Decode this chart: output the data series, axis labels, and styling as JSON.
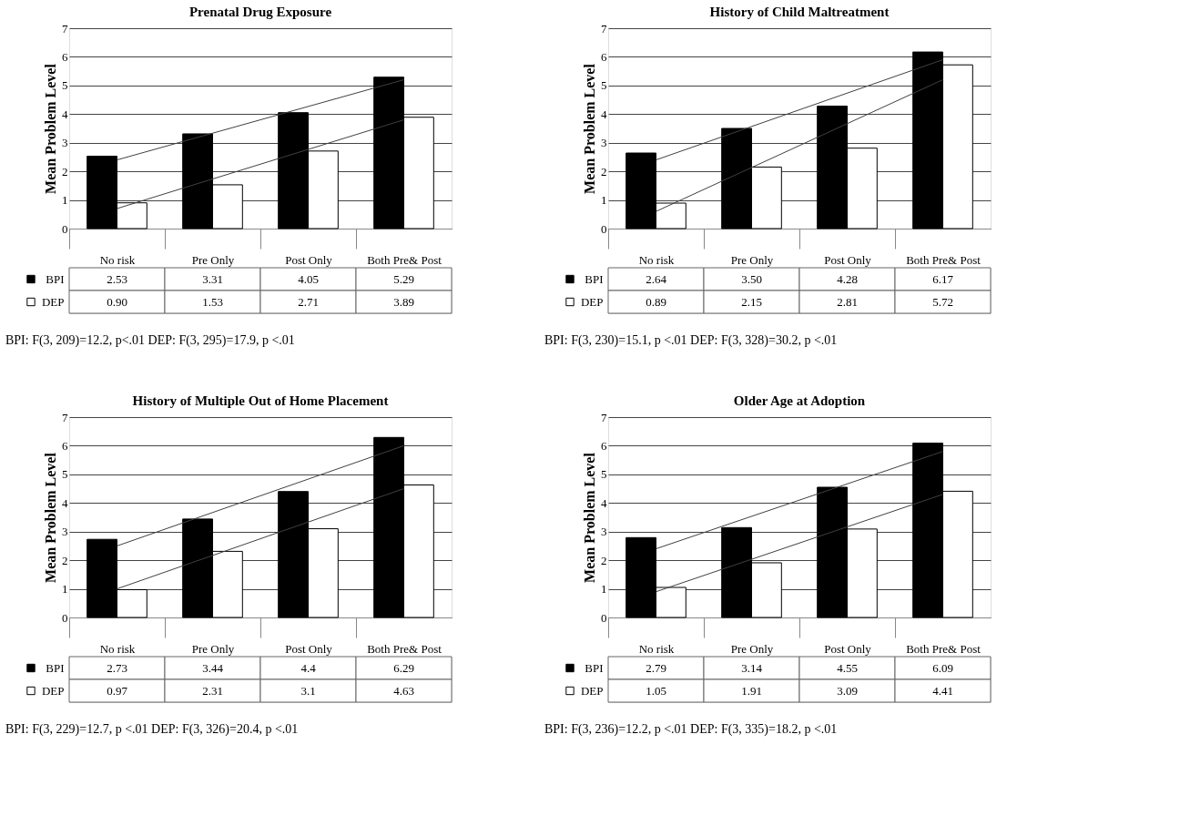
{
  "chart_data": [
    {
      "type": "bar",
      "title": "Prenatal Drug Exposure",
      "ylabel": "Mean Problem Level",
      "categories": [
        "No risk",
        "Pre Only",
        "Post Only",
        "Both Pre& Post"
      ],
      "ylim": [
        0,
        7
      ],
      "yticks": [
        0,
        1,
        2,
        3,
        4,
        5,
        6,
        7
      ],
      "grid": "y",
      "legend": "bottom",
      "annotations": [
        "BPI: F(3, 209)=12.2, p<.01 DEP: F(3, 295)=17.9, p <.01"
      ],
      "series": [
        {
          "name": "BPI",
          "color": "#000000",
          "values": [
            2.53,
            3.31,
            4.05,
            5.29
          ],
          "value_labels": [
            "2.53",
            "3.31",
            "4.05",
            "5.29"
          ]
        },
        {
          "name": "DEP",
          "color": "#ffffff",
          "values": [
            0.9,
            1.53,
            2.71,
            3.89
          ],
          "value_labels": [
            "0.90",
            "1.53",
            "2.71",
            "3.89"
          ]
        },
        {
          "type": "line",
          "color": "#404040",
          "x": [
            "No risk",
            "Both Pre& Post"
          ],
          "values": [
            2.4,
            5.2
          ]
        },
        {
          "type": "line",
          "color": "#404040",
          "x": [
            "No risk",
            "Both Pre& Post"
          ],
          "values": [
            0.7,
            3.8
          ]
        }
      ]
    },
    {
      "type": "bar",
      "title": "History of Child Maltreatment",
      "ylabel": "Mean Problem Level",
      "categories": [
        "No risk",
        "Pre Only",
        "Post Only",
        "Both Pre& Post"
      ],
      "ylim": [
        0,
        7
      ],
      "yticks": [
        0,
        1,
        2,
        3,
        4,
        5,
        6,
        7
      ],
      "grid": "y",
      "legend": "bottom",
      "annotations": [
        "BPI: F(3, 230)=15.1, p <.01  DEP: F(3, 328)=30.2, p <.01"
      ],
      "series": [
        {
          "name": "BPI",
          "color": "#000000",
          "values": [
            2.64,
            3.5,
            4.28,
            6.17
          ],
          "value_labels": [
            "2.64",
            "3.50",
            "4.28",
            "6.17"
          ]
        },
        {
          "name": "DEP",
          "color": "#ffffff",
          "values": [
            0.89,
            2.15,
            2.81,
            5.72
          ],
          "value_labels": [
            "0.89",
            "2.15",
            "2.81",
            "5.72"
          ]
        },
        {
          "type": "line",
          "color": "#404040",
          "x": [
            "No risk",
            "Both Pre& Post"
          ],
          "values": [
            2.4,
            5.9
          ]
        },
        {
          "type": "line",
          "color": "#404040",
          "x": [
            "No risk",
            "Both Pre& Post"
          ],
          "values": [
            0.6,
            5.2
          ]
        }
      ]
    },
    {
      "type": "bar",
      "title": "History of Multiple Out of Home Placement",
      "ylabel": "Mean Problem Level",
      "categories": [
        "No risk",
        "Pre Only",
        "Post Only",
        "Both Pre& Post"
      ],
      "ylim": [
        0,
        7
      ],
      "yticks": [
        0,
        1,
        2,
        3,
        4,
        5,
        6,
        7
      ],
      "grid": "y",
      "legend": "bottom",
      "annotations": [
        "BPI: F(3, 229)=12.7, p <.01 DEP: F(3, 326)=20.4, p <.01"
      ],
      "series": [
        {
          "name": "BPI",
          "color": "#000000",
          "values": [
            2.73,
            3.44,
            4.4,
            6.29
          ],
          "value_labels": [
            "2.73",
            "3.44",
            "4.4",
            "6.29"
          ]
        },
        {
          "name": "DEP",
          "color": "#ffffff",
          "values": [
            0.97,
            2.31,
            3.1,
            4.63
          ],
          "value_labels": [
            "0.97",
            "2.31",
            "3.1",
            "4.63"
          ]
        },
        {
          "type": "line",
          "color": "#404040",
          "x": [
            "No risk",
            "Both Pre& Post"
          ],
          "values": [
            2.5,
            6.0
          ]
        },
        {
          "type": "line",
          "color": "#404040",
          "x": [
            "No risk",
            "Both Pre& Post"
          ],
          "values": [
            1.0,
            4.5
          ]
        }
      ]
    },
    {
      "type": "bar",
      "title": "Older Age at Adoption",
      "ylabel": "Mean Problem Level",
      "categories": [
        "No risk",
        "Pre Only",
        "Post Only",
        "Both Pre& Post"
      ],
      "ylim": [
        0,
        7
      ],
      "yticks": [
        0,
        1,
        2,
        3,
        4,
        5,
        6,
        7
      ],
      "grid": "y",
      "legend": "bottom",
      "annotations": [
        "BPI: F(3, 236)=12.2, p <.01 DEP: F(3, 335)=18.2, p <.01"
      ],
      "series": [
        {
          "name": "BPI",
          "color": "#000000",
          "values": [
            2.79,
            3.14,
            4.55,
            6.09
          ],
          "value_labels": [
            "2.79",
            "3.14",
            "4.55",
            "6.09"
          ]
        },
        {
          "name": "DEP",
          "color": "#ffffff",
          "values": [
            1.05,
            1.91,
            3.09,
            4.41
          ],
          "value_labels": [
            "1.05",
            "1.91",
            "3.09",
            "4.41"
          ]
        },
        {
          "type": "line",
          "color": "#404040",
          "x": [
            "No risk",
            "Both Pre& Post"
          ],
          "values": [
            2.4,
            5.8
          ]
        },
        {
          "type": "line",
          "color": "#404040",
          "x": [
            "No risk",
            "Both Pre& Post"
          ],
          "values": [
            0.9,
            4.3
          ]
        }
      ]
    }
  ]
}
